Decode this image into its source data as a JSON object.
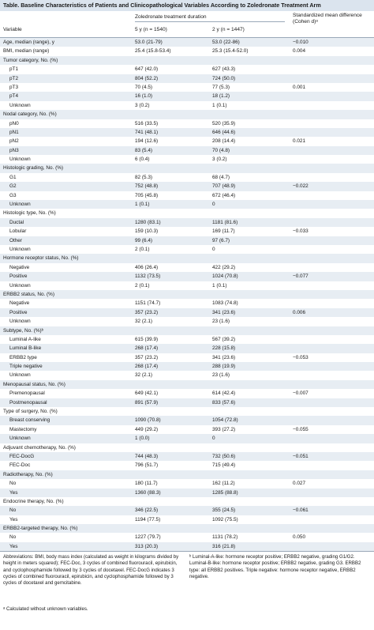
{
  "table_title": "Table. Baseline Characteristics of Patients and Clinicopathological Variables According to Zoledronate Treatment Arm",
  "header": {
    "group": "Zoledronate treatment duration",
    "col_variable": "Variable",
    "col_5y": "5 y (n = 1540)",
    "col_2y": "2 y (n = 1447)",
    "col_smd": "Standardized mean difference (Cohen d)ᵃ"
  },
  "rows": [
    {
      "label": "Age, median (range), y",
      "v5": "53.0 (21-79)",
      "v2": "53.0 (22-86)",
      "d": "−0.010",
      "shade": true,
      "sub": false
    },
    {
      "label": "BMI, median (range)",
      "v5": "25.4 (15.8-53.4)",
      "v2": "25.3 (15.4-52.0)",
      "d": "0.004",
      "shade": false,
      "sub": false
    },
    {
      "label": "Tumor category, No. (%)",
      "v5": "",
      "v2": "",
      "d": "",
      "shade": true,
      "sub": false
    },
    {
      "label": "pT1",
      "v5": "647 (42.0)",
      "v2": "627 (43.3)",
      "d": "",
      "shade": false,
      "sub": true
    },
    {
      "label": "pT2",
      "v5": "804 (52.2)",
      "v2": "724 (50.0)",
      "d": "",
      "shade": true,
      "sub": true
    },
    {
      "label": "pT3",
      "v5": "70 (4.5)",
      "v2": "77 (5.3)",
      "d": "0.001",
      "shade": false,
      "sub": true
    },
    {
      "label": "pT4",
      "v5": "16 (1.0)",
      "v2": "18 (1.2)",
      "d": "",
      "shade": true,
      "sub": true
    },
    {
      "label": "Unknown",
      "v5": "3 (0.2)",
      "v2": "1 (0.1)",
      "d": "",
      "shade": false,
      "sub": true
    },
    {
      "label": "Nodal category, No. (%)",
      "v5": "",
      "v2": "",
      "d": "",
      "shade": true,
      "sub": false
    },
    {
      "label": "pN0",
      "v5": "516 (33.5)",
      "v2": "520 (35.9)",
      "d": "",
      "shade": false,
      "sub": true
    },
    {
      "label": "pN1",
      "v5": "741 (48.1)",
      "v2": "646 (44.6)",
      "d": "",
      "shade": true,
      "sub": true
    },
    {
      "label": "pN2",
      "v5": "194 (12.6)",
      "v2": "208 (14.4)",
      "d": "0.021",
      "shade": false,
      "sub": true
    },
    {
      "label": "pN3",
      "v5": "83 (5.4)",
      "v2": "70 (4.8)",
      "d": "",
      "shade": true,
      "sub": true
    },
    {
      "label": "Unknown",
      "v5": "6 (0.4)",
      "v2": "3 (0.2)",
      "d": "",
      "shade": false,
      "sub": true
    },
    {
      "label": "Histologic grading, No. (%)",
      "v5": "",
      "v2": "",
      "d": "",
      "shade": true,
      "sub": false
    },
    {
      "label": "G1",
      "v5": "82 (5.3)",
      "v2": "68 (4.7)",
      "d": "",
      "shade": false,
      "sub": true
    },
    {
      "label": "G2",
      "v5": "752 (48.8)",
      "v2": "707 (48.9)",
      "d": "−0.022",
      "shade": true,
      "sub": true
    },
    {
      "label": "G3",
      "v5": "705 (45.8)",
      "v2": "672 (46.4)",
      "d": "",
      "shade": false,
      "sub": true
    },
    {
      "label": "Unknown",
      "v5": "1 (0.1)",
      "v2": "0",
      "d": "",
      "shade": true,
      "sub": true
    },
    {
      "label": "Histologic type, No. (%)",
      "v5": "",
      "v2": "",
      "d": "",
      "shade": false,
      "sub": false
    },
    {
      "label": "Ductal",
      "v5": "1280 (83.1)",
      "v2": "1181 (81.6)",
      "d": "",
      "shade": true,
      "sub": true
    },
    {
      "label": "Lobular",
      "v5": "159 (10.3)",
      "v2": "169 (11.7)",
      "d": "−0.033",
      "shade": false,
      "sub": true
    },
    {
      "label": "Other",
      "v5": "99 (6.4)",
      "v2": "97 (6.7)",
      "d": "",
      "shade": true,
      "sub": true
    },
    {
      "label": "Unknown",
      "v5": "2 (0.1)",
      "v2": "0",
      "d": "",
      "shade": false,
      "sub": true
    },
    {
      "label": "Hormone receptor status, No. (%)",
      "v5": "",
      "v2": "",
      "d": "",
      "shade": true,
      "sub": false
    },
    {
      "label": "Negative",
      "v5": "406 (26.4)",
      "v2": "422 (29.2)",
      "d": "",
      "shade": false,
      "sub": true
    },
    {
      "label": "Positive",
      "v5": "1132 (73.5)",
      "v2": "1024 (70.8)",
      "d": "−0.077",
      "shade": true,
      "sub": true
    },
    {
      "label": "Unknown",
      "v5": "2 (0.1)",
      "v2": "1 (0.1)",
      "d": "",
      "shade": false,
      "sub": true
    },
    {
      "label": "ERBB2 status, No. (%)",
      "v5": "",
      "v2": "",
      "d": "",
      "shade": true,
      "sub": false
    },
    {
      "label": "Negative",
      "v5": "1151 (74.7)",
      "v2": "1083 (74.8)",
      "d": "",
      "shade": false,
      "sub": true
    },
    {
      "label": "Positive",
      "v5": "357 (23.2)",
      "v2": "341 (23.6)",
      "d": "0.006",
      "shade": true,
      "sub": true
    },
    {
      "label": "Unknown",
      "v5": "32 (2.1)",
      "v2": "23 (1.6)",
      "d": "",
      "shade": false,
      "sub": true
    },
    {
      "label": "Subtype, No. (%)ᵇ",
      "v5": "",
      "v2": "",
      "d": "",
      "shade": true,
      "sub": false
    },
    {
      "label": "Luminal A-like",
      "v5": "615 (39.9)",
      "v2": "567 (39.2)",
      "d": "",
      "shade": false,
      "sub": true
    },
    {
      "label": "Luminal B-like",
      "v5": "268 (17.4)",
      "v2": "228 (15.8)",
      "d": "",
      "shade": true,
      "sub": true
    },
    {
      "label": "ERBB2 type",
      "v5": "357 (23.2)",
      "v2": "341 (23.6)",
      "d": "−0.053",
      "shade": false,
      "sub": true
    },
    {
      "label": "Triple negative",
      "v5": "268 (17.4)",
      "v2": "288 (19.9)",
      "d": "",
      "shade": true,
      "sub": true
    },
    {
      "label": "Unknown",
      "v5": "32 (2.1)",
      "v2": "23 (1.6)",
      "d": "",
      "shade": false,
      "sub": true
    },
    {
      "label": "Menopausal status, No. (%)",
      "v5": "",
      "v2": "",
      "d": "",
      "shade": true,
      "sub": false
    },
    {
      "label": "Premenopausal",
      "v5": "649 (42.1)",
      "v2": "614 (42.4)",
      "d": "−0.007",
      "shade": false,
      "sub": true
    },
    {
      "label": "Postmenopausal",
      "v5": "891 (57.9)",
      "v2": "833 (57.6)",
      "d": "",
      "shade": true,
      "sub": true
    },
    {
      "label": "Type of surgery, No. (%)",
      "v5": "",
      "v2": "",
      "d": "",
      "shade": false,
      "sub": false
    },
    {
      "label": "Breast conserving",
      "v5": "1090 (70.8)",
      "v2": "1054 (72.8)",
      "d": "",
      "shade": true,
      "sub": true
    },
    {
      "label": "Mastectomy",
      "v5": "449 (29.2)",
      "v2": "393 (27.2)",
      "d": "−0.055",
      "shade": false,
      "sub": true
    },
    {
      "label": "Unknown",
      "v5": "1 (0.0)",
      "v2": "0",
      "d": "",
      "shade": true,
      "sub": true
    },
    {
      "label": "Adjuvant chemotherapy, No. (%)",
      "v5": "",
      "v2": "",
      "d": "",
      "shade": false,
      "sub": false
    },
    {
      "label": "FEC-DocG",
      "v5": "744 (48.3)",
      "v2": "732 (50.6)",
      "d": "−0.051",
      "shade": true,
      "sub": true
    },
    {
      "label": "FEC-Doc",
      "v5": "796 (51.7)",
      "v2": "715 (49.4)",
      "d": "",
      "shade": false,
      "sub": true
    },
    {
      "label": "Radiotherapy, No. (%)",
      "v5": "",
      "v2": "",
      "d": "",
      "shade": true,
      "sub": false
    },
    {
      "label": "No",
      "v5": "180 (11.7)",
      "v2": "162 (11.2)",
      "d": "0.027",
      "shade": false,
      "sub": true
    },
    {
      "label": "Yes",
      "v5": "1360 (88.3)",
      "v2": "1285 (88.8)",
      "d": "",
      "shade": true,
      "sub": true
    },
    {
      "label": "Endocrine therapy, No. (%)",
      "v5": "",
      "v2": "",
      "d": "",
      "shade": false,
      "sub": false
    },
    {
      "label": "No",
      "v5": "346 (22.5)",
      "v2": "355 (24.5)",
      "d": "−0.061",
      "shade": true,
      "sub": true
    },
    {
      "label": "Yes",
      "v5": "1194 (77.5)",
      "v2": "1092 (75.5)",
      "d": "",
      "shade": false,
      "sub": true
    },
    {
      "label": "ERBB2-targeted therapy, No. (%)",
      "v5": "",
      "v2": "",
      "d": "",
      "shade": true,
      "sub": false
    },
    {
      "label": "No",
      "v5": "1227 (79.7)",
      "v2": "1131 (78.2)",
      "d": "0.050",
      "shade": false,
      "sub": true
    },
    {
      "label": "Yes",
      "v5": "313 (20.3)",
      "v2": "316 (21.8)",
      "d": "",
      "shade": true,
      "sub": true
    }
  ],
  "footnotes": {
    "abbreviations": "Abbreviations: BMI, body mass index (calculated as weight in kilograms divided by height in meters squared); FEC-Doc, 3 cycles of combined fluorouracil, epirubicin, and cyclophosphamide followed by 3 cycles of docetaxel. FEC-DocG indicates 3 cycles of combined fluorouracil, epirubicin, and cyclophosphamide followed by 3 cycles of docetaxel and gemcitabine.",
    "note_a": "ᵃ Calculated without unknown variables.",
    "note_b": "ᵇ Luminal-A-like: hormone receptor positive; ERBB2 negative, grading G1/G2. Luminal-B-like: hormone receptor positive; ERBB2 negative, grading G3. ERBB2 type: all ERBB2 positives. Triple negative: hormone receptor negative, ERBB2 negative."
  },
  "colors": {
    "title_band": "#dbe4ee",
    "row_shade": "#e7edf3",
    "rule": "#9aa8b8"
  }
}
